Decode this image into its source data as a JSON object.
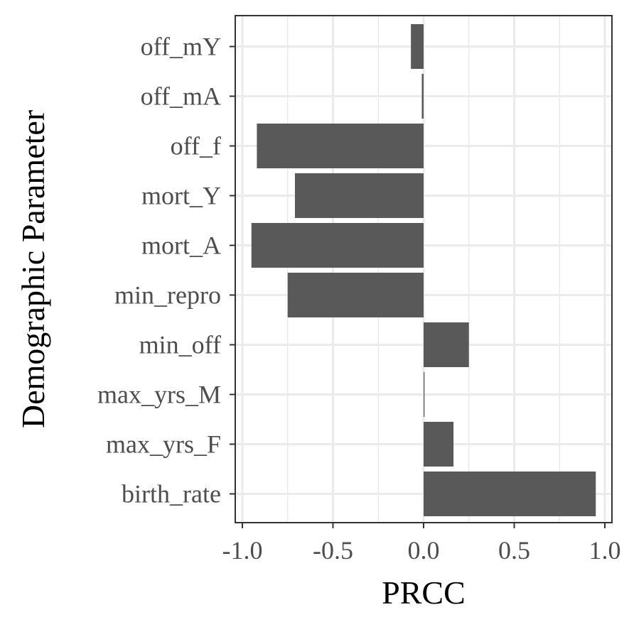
{
  "chart_data": {
    "type": "bar",
    "orientation": "horizontal",
    "categories": [
      "off_mY",
      "off_mA",
      "off_f",
      "mort_Y",
      "mort_A",
      "min_repro",
      "min_off",
      "max_yrs_M",
      "max_yrs_F",
      "birth_rate"
    ],
    "values": [
      -0.07,
      -0.01,
      -0.92,
      -0.71,
      -0.95,
      -0.75,
      0.25,
      0.005,
      0.165,
      0.95
    ],
    "xlabel": "PRCC",
    "ylabel": "Demographic Parameter",
    "xlim": [
      -1.0,
      1.0
    ],
    "x_ticks": [
      "-1.0",
      "-0.5",
      "0.0",
      "0.5",
      "1.0"
    ],
    "grid": true,
    "colors": {
      "bar": "#595959",
      "grid": "#ebebeb",
      "panel_border": "#333333",
      "tick_text": "#4d4d4d",
      "title_text": "#000000"
    }
  }
}
